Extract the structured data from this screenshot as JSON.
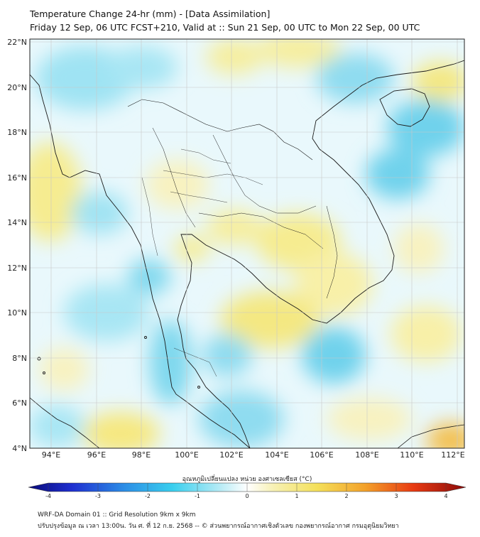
{
  "header": {
    "title": "Temperature Change 24-hr (mm) - [Data Assimilation]",
    "subtitle": "Friday 12 Sep, 06 UTC FCST+210, Valid at :: Sun 21 Sep, 00 UTC to Mon 22 Sep, 00 UTC"
  },
  "map": {
    "latitude_labels": [
      "4°N",
      "6°N",
      "8°N",
      "10°N",
      "12°N",
      "14°N",
      "16°N",
      "18°N",
      "20°N",
      "22°N"
    ],
    "longitude_labels": [
      "94°E",
      "96°E",
      "98°E",
      "100°E",
      "102°E",
      "104°E",
      "106°E",
      "108°E",
      "110°E",
      "112°E"
    ],
    "grid": true,
    "colors": {
      "background_field": "#f3fbfd",
      "cool_field": "#7fd8ee",
      "warm_field": "#f7ec8c",
      "coastline": "#1a1a1a",
      "gridline": "#c8c8c8"
    }
  },
  "colorbar": {
    "title": "อุณหภูมิเปลี่ยนแปลง หน่วย องศาเซลเซียส (°C)",
    "tick_labels": [
      "-4",
      "-3",
      "-2",
      "-1",
      "0",
      "1",
      "2",
      "3",
      "4"
    ],
    "min": -4,
    "max": 4
  },
  "footer": {
    "line1": "WRF-DA Domain 01 :: Grid Resolution 9km x 9km",
    "line2": "ปรับปรุงข้อมูล ณ เวลา 13:00น. วัน ศ. ที่ 12 ก.ย. 2568 -- © ส่วนพยากรณ์อากาศเชิงตัวเลข กองพยากรณ์อากาศ กรมอุตุนิยมวิทยา"
  }
}
